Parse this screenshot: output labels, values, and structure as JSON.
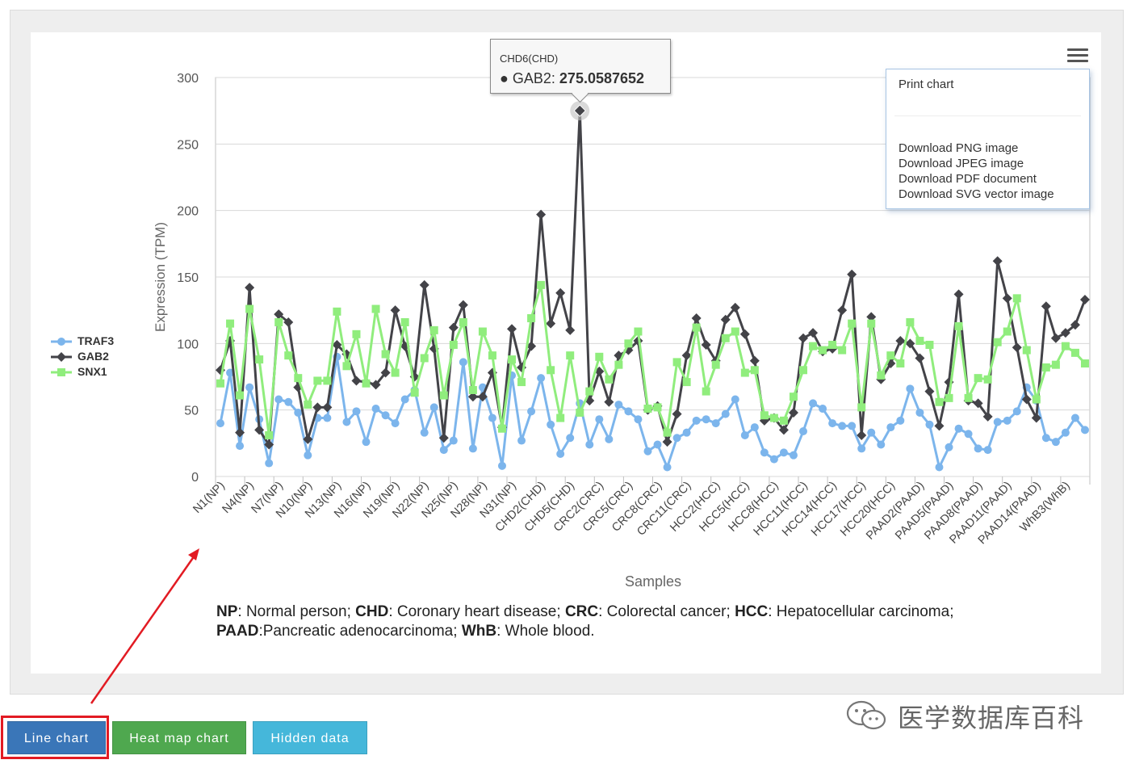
{
  "tooltip": {
    "title": "CHD6(CHD)",
    "series": "GAB2",
    "value": "275.0587652",
    "dot": "●"
  },
  "export_menu": {
    "icon": "hamburger-menu-icon",
    "items": [
      "Print chart",
      "Download PNG image",
      "Download JPEG image",
      "Download PDF document",
      "Download SVG vector image"
    ]
  },
  "footnote": {
    "line1": [
      {
        "abbr": "NP",
        "text": ": Normal person; "
      },
      {
        "abbr": "CHD",
        "text": ": Coronary heart disease; "
      },
      {
        "abbr": "CRC",
        "text": ": Colorectal cancer; "
      },
      {
        "abbr": "HCC",
        "text": ": Hepatocellular carcinoma;"
      }
    ],
    "line2": [
      {
        "abbr": "PAAD",
        "text": ":Pancreatic adenocarcinoma; "
      },
      {
        "abbr": "WhB",
        "text": ": Whole blood."
      }
    ]
  },
  "buttons": {
    "line_chart": "Line chart",
    "heat_map_chart": "Heat map chart",
    "hidden_data": "Hidden data"
  },
  "watermark": {
    "text": "医学数据库百科",
    "icon": "wechat-icon"
  },
  "chart_data": {
    "type": "line",
    "xlabel": "Samples",
    "ylabel": "Expression (TPM)",
    "ylim": [
      0,
      300
    ],
    "yticks": [
      0,
      50,
      100,
      150,
      200,
      250,
      300
    ],
    "grid": true,
    "legend_position": "left",
    "tick_labels": [
      "N1(NP)",
      "N4(NP)",
      "N7(NP)",
      "N10(NP)",
      "N13(NP)",
      "N16(NP)",
      "N19(NP)",
      "N22(NP)",
      "N25(NP)",
      "N28(NP)",
      "N31(NP)",
      "CHD2(CHD)",
      "CHD5(CHD)",
      "CRC2(CRC)",
      "CRC5(CRC)",
      "CRC8(CRC)",
      "CRC11(CRC)",
      "HCC2(HCC)",
      "HCC5(HCC)",
      "HCC8(HCC)",
      "HCC11(HCC)",
      "HCC14(HCC)",
      "HCC17(HCC)",
      "HCC20(HCC)",
      "PAAD2(PAAD)",
      "PAAD5(PAAD)",
      "PAAD8(PAAD)",
      "PAAD11(PAAD)",
      "PAAD14(PAAD)",
      "WhB3(WhB)"
    ],
    "highlight": {
      "series": "GAB2",
      "index": 37,
      "value": 275.06
    },
    "series": [
      {
        "name": "TRAF3",
        "color": "#7cb5ec",
        "marker": "circle",
        "values": [
          40,
          78,
          23,
          67,
          43,
          10,
          58,
          56,
          48,
          16,
          44,
          44,
          90,
          41,
          49,
          26,
          51,
          46,
          40,
          58,
          65,
          33,
          52,
          20,
          27,
          86,
          21,
          67,
          44,
          8,
          76,
          27,
          49,
          74,
          39,
          17,
          29,
          55,
          24,
          43,
          28,
          54,
          49,
          43,
          19,
          24,
          7,
          29,
          33,
          42,
          43,
          40,
          47,
          58,
          31,
          37,
          18,
          13,
          18,
          16,
          34,
          55,
          51,
          40,
          38,
          38,
          21,
          33,
          24,
          37,
          42,
          66,
          48,
          39,
          7,
          22,
          36,
          32,
          21,
          20,
          41,
          42,
          49,
          67,
          57,
          29,
          26,
          33,
          44,
          35
        ]
      },
      {
        "name": "GAB2",
        "color": "#434348",
        "marker": "diamond",
        "values": [
          80,
          102,
          33,
          142,
          35,
          24,
          122,
          116,
          67,
          28,
          52,
          52,
          99,
          92,
          72,
          71,
          69,
          78,
          125,
          98,
          75,
          144,
          96,
          29,
          112,
          129,
          60,
          60,
          78,
          37,
          111,
          82,
          98,
          197,
          115,
          138,
          110,
          275,
          57,
          79,
          56,
          91,
          95,
          102,
          50,
          53,
          26,
          47,
          91,
          119,
          99,
          87,
          118,
          127,
          107,
          87,
          42,
          44,
          35,
          48,
          104,
          108,
          94,
          96,
          125,
          152,
          31,
          120,
          73,
          85,
          102,
          100,
          89,
          64,
          38,
          71,
          137,
          57,
          55,
          45,
          162,
          134,
          97,
          58,
          44,
          128,
          104,
          108,
          114,
          133
        ]
      },
      {
        "name": "SNX1",
        "color": "#90ed7d",
        "marker": "square",
        "values": [
          70,
          115,
          61,
          126,
          88,
          31,
          116,
          91,
          74,
          54,
          72,
          72,
          124,
          83,
          107,
          70,
          126,
          92,
          78,
          116,
          63,
          89,
          110,
          61,
          99,
          116,
          65,
          109,
          91,
          36,
          88,
          71,
          119,
          144,
          80,
          44,
          91,
          48,
          64,
          90,
          73,
          84,
          100,
          109,
          51,
          52,
          33,
          86,
          71,
          112,
          64,
          84,
          104,
          109,
          78,
          80,
          46,
          44,
          42,
          60,
          80,
          98,
          95,
          99,
          95,
          115,
          52,
          115,
          76,
          91,
          85,
          116,
          102,
          99,
          56,
          59,
          113,
          59,
          74,
          73,
          101,
          109,
          134,
          95,
          58,
          82,
          84,
          98,
          93,
          85
        ]
      }
    ]
  }
}
